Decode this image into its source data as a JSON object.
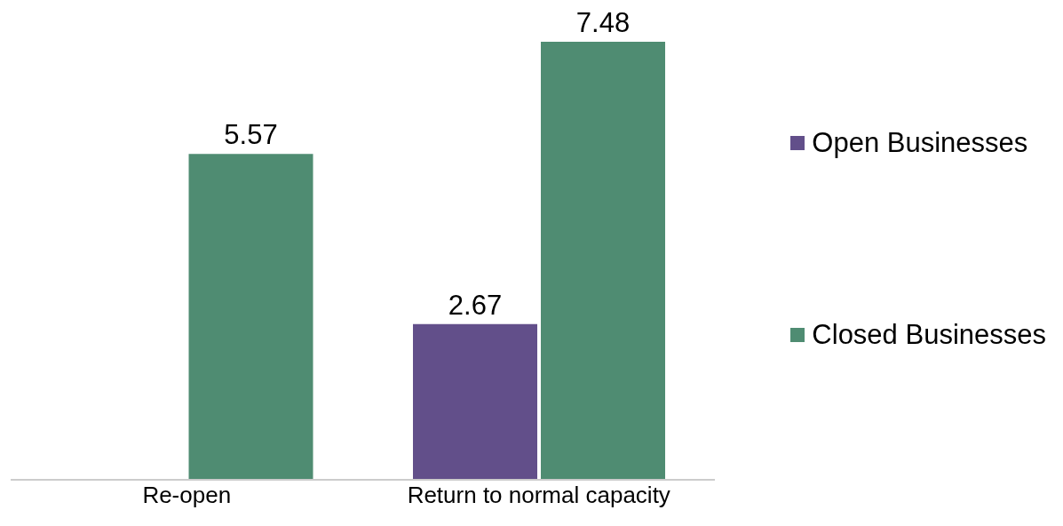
{
  "chart_data": {
    "type": "bar",
    "categories": [
      "Re-open",
      "Return to normal capacity"
    ],
    "series": [
      {
        "name": "Open Businesses",
        "color": "#624f8a",
        "values": [
          null,
          2.67
        ]
      },
      {
        "name": "Closed Businesses",
        "color": "#4f8c72",
        "values": [
          5.57,
          7.48
        ]
      }
    ],
    "data_labels": true,
    "legend": "right",
    "grid": false
  }
}
